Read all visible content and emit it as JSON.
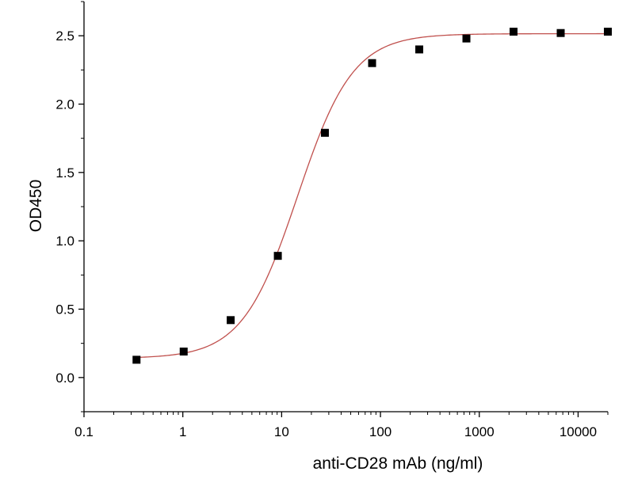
{
  "chart_data": {
    "type": "scatter",
    "title": "",
    "xlabel": "anti-CD28 mAb (ng/ml)",
    "ylabel": "OD450",
    "x_scale": "log",
    "xlim": [
      0.1,
      20000
    ],
    "ylim": [
      -0.25,
      2.75
    ],
    "x_ticks": [
      0.1,
      1,
      10,
      100,
      1000,
      10000
    ],
    "x_tick_labels": [
      "0.1",
      "1",
      "10",
      "100",
      "1000",
      "10000"
    ],
    "y_ticks": [
      0.0,
      0.5,
      1.0,
      1.5,
      2.0,
      2.5
    ],
    "y_tick_labels": [
      "0.0",
      "0.5",
      "1.0",
      "1.5",
      "2.0",
      "2.5"
    ],
    "grid": false,
    "legend": "none",
    "series": [
      {
        "marker": "square",
        "color": "#000000",
        "x": [
          0.34,
          1.02,
          3.05,
          9.15,
          27.4,
          82.3,
          247,
          741,
          2222,
          6667,
          20000
        ],
        "y": [
          0.13,
          0.19,
          0.42,
          0.89,
          1.79,
          2.3,
          2.4,
          2.48,
          2.53,
          2.52,
          2.53
        ]
      }
    ],
    "fit_curve": {
      "model": "4PL",
      "color": "#c0504d",
      "bottom": 0.14,
      "top": 2.515,
      "ec50": 14.5,
      "hill": 1.55
    }
  }
}
